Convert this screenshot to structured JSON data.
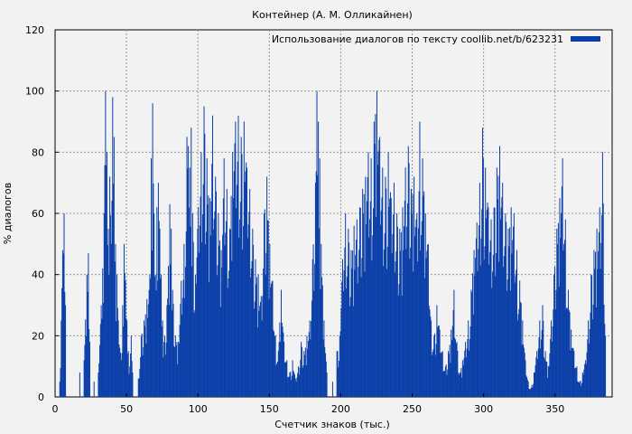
{
  "chart_data": {
    "type": "bar",
    "title": "Контейнер (А. М. Олликайнен)",
    "xlabel": "Счетчик знаков (тыс.)",
    "ylabel": "% диалогов",
    "xlim": [
      0,
      390
    ],
    "ylim": [
      0,
      120
    ],
    "x_ticks": [
      0,
      50,
      100,
      150,
      200,
      250,
      300,
      350
    ],
    "y_ticks": [
      0,
      20,
      40,
      60,
      80,
      100,
      120
    ],
    "grid": true,
    "legend_position": "top-right",
    "bar_color": "#0a3ea8",
    "series": [
      {
        "name": "Использование диалогов по тексту coollib.net/b/623231",
        "points": [
          [
            3,
            5
          ],
          [
            4,
            25
          ],
          [
            5,
            48
          ],
          [
            6,
            60
          ],
          [
            7,
            30
          ],
          [
            17,
            8
          ],
          [
            20,
            12
          ],
          [
            22,
            40
          ],
          [
            23,
            47
          ],
          [
            24,
            18
          ],
          [
            27,
            5
          ],
          [
            30,
            8
          ],
          [
            32,
            30
          ],
          [
            33,
            42
          ],
          [
            34,
            60
          ],
          [
            35,
            100
          ],
          [
            36,
            80
          ],
          [
            37,
            55
          ],
          [
            38,
            72
          ],
          [
            39,
            50
          ],
          [
            40,
            98
          ],
          [
            41,
            85
          ],
          [
            42,
            50
          ],
          [
            43,
            40
          ],
          [
            44,
            25
          ],
          [
            46,
            12
          ],
          [
            47,
            30
          ],
          [
            48,
            50
          ],
          [
            49,
            38
          ],
          [
            50,
            25
          ],
          [
            51,
            15
          ],
          [
            52,
            10
          ],
          [
            53,
            20
          ],
          [
            54,
            8
          ],
          [
            58,
            6
          ],
          [
            60,
            20
          ],
          [
            62,
            25
          ],
          [
            64,
            32
          ],
          [
            66,
            40
          ],
          [
            67,
            78
          ],
          [
            68,
            96
          ],
          [
            69,
            60
          ],
          [
            70,
            40
          ],
          [
            71,
            62
          ],
          [
            72,
            70
          ],
          [
            73,
            55
          ],
          [
            74,
            40
          ],
          [
            75,
            25
          ],
          [
            76,
            18
          ],
          [
            78,
            30
          ],
          [
            80,
            63
          ],
          [
            81,
            55
          ],
          [
            82,
            35
          ],
          [
            84,
            20
          ],
          [
            86,
            18
          ],
          [
            88,
            38
          ],
          [
            90,
            50
          ],
          [
            92,
            85
          ],
          [
            93,
            82
          ],
          [
            94,
            75
          ],
          [
            95,
            88
          ],
          [
            96,
            60
          ],
          [
            98,
            40
          ],
          [
            100,
            62
          ],
          [
            102,
            80
          ],
          [
            104,
            95
          ],
          [
            106,
            78
          ],
          [
            108,
            65
          ],
          [
            110,
            92
          ],
          [
            112,
            72
          ],
          [
            114,
            60
          ],
          [
            116,
            48
          ],
          [
            118,
            78
          ],
          [
            120,
            68
          ],
          [
            122,
            55
          ],
          [
            124,
            80
          ],
          [
            126,
            90
          ],
          [
            128,
            92
          ],
          [
            130,
            85
          ],
          [
            132,
            90
          ],
          [
            134,
            75
          ],
          [
            136,
            68
          ],
          [
            138,
            55
          ],
          [
            140,
            45
          ],
          [
            142,
            40
          ],
          [
            144,
            33
          ],
          [
            146,
            60
          ],
          [
            148,
            72
          ],
          [
            150,
            50
          ],
          [
            152,
            38
          ],
          [
            154,
            20
          ],
          [
            156,
            15
          ],
          [
            158,
            35
          ],
          [
            160,
            18
          ],
          [
            162,
            12
          ],
          [
            164,
            8
          ],
          [
            166,
            12
          ],
          [
            168,
            6
          ],
          [
            170,
            10
          ],
          [
            172,
            18
          ],
          [
            174,
            15
          ],
          [
            176,
            20
          ],
          [
            178,
            25
          ],
          [
            180,
            45
          ],
          [
            182,
            70
          ],
          [
            183,
            100
          ],
          [
            184,
            90
          ],
          [
            185,
            78
          ],
          [
            186,
            50
          ],
          [
            188,
            25
          ],
          [
            190,
            8
          ],
          [
            194,
            5
          ],
          [
            197,
            15
          ],
          [
            199,
            20
          ],
          [
            201,
            45
          ],
          [
            203,
            60
          ],
          [
            205,
            55
          ],
          [
            207,
            48
          ],
          [
            209,
            56
          ],
          [
            211,
            58
          ],
          [
            213,
            62
          ],
          [
            215,
            68
          ],
          [
            217,
            72
          ],
          [
            219,
            80
          ],
          [
            221,
            78
          ],
          [
            223,
            90
          ],
          [
            225,
            100
          ],
          [
            227,
            85
          ],
          [
            229,
            75
          ],
          [
            231,
            72
          ],
          [
            233,
            80
          ],
          [
            235,
            65
          ],
          [
            237,
            70
          ],
          [
            239,
            60
          ],
          [
            241,
            55
          ],
          [
            243,
            62
          ],
          [
            245,
            75
          ],
          [
            247,
            82
          ],
          [
            249,
            68
          ],
          [
            251,
            72
          ],
          [
            253,
            60
          ],
          [
            255,
            90
          ],
          [
            257,
            78
          ],
          [
            259,
            60
          ],
          [
            261,
            50
          ],
          [
            263,
            25
          ],
          [
            265,
            20
          ],
          [
            267,
            30
          ],
          [
            269,
            22
          ],
          [
            271,
            15
          ],
          [
            273,
            10
          ],
          [
            275,
            15
          ],
          [
            277,
            22
          ],
          [
            279,
            35
          ],
          [
            281,
            18
          ],
          [
            283,
            8
          ],
          [
            285,
            12
          ],
          [
            287,
            18
          ],
          [
            289,
            25
          ],
          [
            291,
            35
          ],
          [
            293,
            48
          ],
          [
            295,
            57
          ],
          [
            297,
            70
          ],
          [
            299,
            88
          ],
          [
            301,
            75
          ],
          [
            303,
            62
          ],
          [
            305,
            58
          ],
          [
            307,
            62
          ],
          [
            309,
            75
          ],
          [
            311,
            82
          ],
          [
            313,
            70
          ],
          [
            315,
            60
          ],
          [
            317,
            55
          ],
          [
            319,
            62
          ],
          [
            321,
            60
          ],
          [
            323,
            48
          ],
          [
            325,
            38
          ],
          [
            327,
            25
          ],
          [
            329,
            12
          ],
          [
            331,
            5
          ],
          [
            333,
            3
          ],
          [
            335,
            8
          ],
          [
            337,
            15
          ],
          [
            339,
            25
          ],
          [
            341,
            30
          ],
          [
            343,
            15
          ],
          [
            345,
            10
          ],
          [
            347,
            25
          ],
          [
            349,
            40
          ],
          [
            351,
            55
          ],
          [
            353,
            65
          ],
          [
            355,
            78
          ],
          [
            357,
            58
          ],
          [
            359,
            35
          ],
          [
            361,
            22
          ],
          [
            363,
            15
          ],
          [
            365,
            10
          ],
          [
            367,
            5
          ],
          [
            369,
            8
          ],
          [
            371,
            12
          ],
          [
            373,
            25
          ],
          [
            375,
            40
          ],
          [
            377,
            48
          ],
          [
            379,
            55
          ],
          [
            381,
            62
          ],
          [
            383,
            80
          ],
          [
            385,
            20
          ]
        ]
      }
    ]
  }
}
